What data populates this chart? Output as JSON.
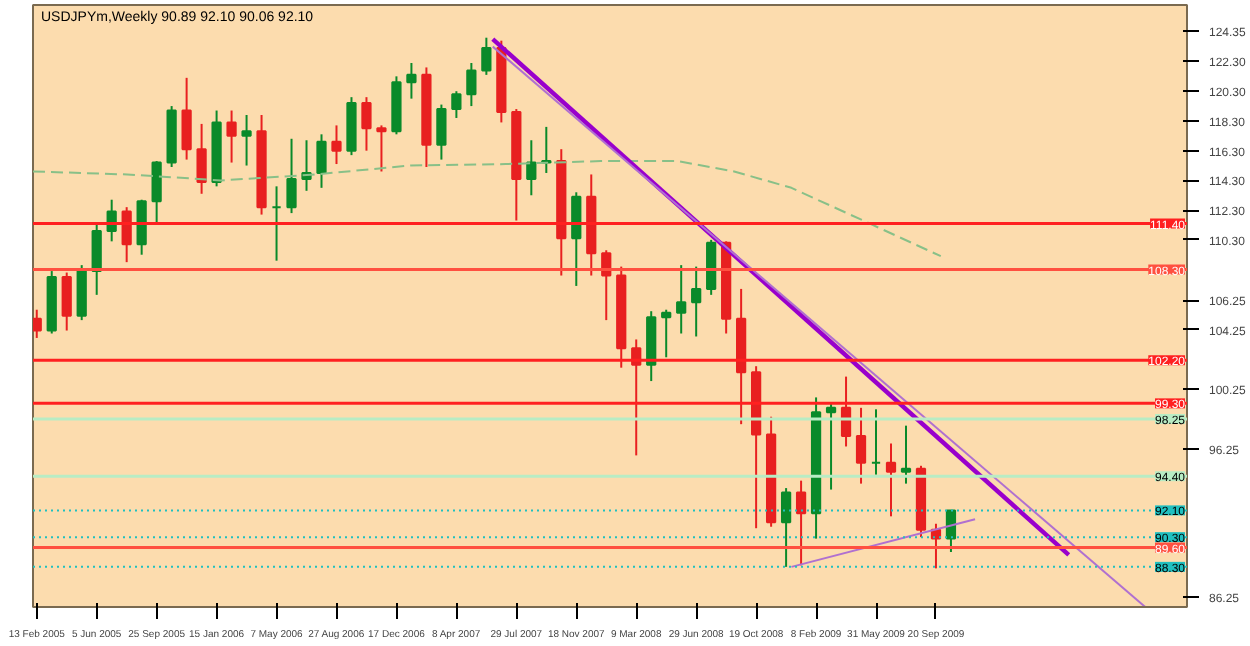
{
  "chart_data": {
    "type": "candlestick",
    "title": "USDJPYm,Weekly  90.89 92.10 90.06 92.10",
    "xlim": [
      "2005-02-06",
      "2011-01-02"
    ],
    "ylim": [
      85.6,
      126.1
    ],
    "xticks": [
      {
        "value": "2005-02-13",
        "label": "13 Feb 2005"
      },
      {
        "value": "2005-06-05",
        "label": "5 Jun 2005"
      },
      {
        "value": "2005-09-25",
        "label": "25 Sep 2005"
      },
      {
        "value": "2006-01-15",
        "label": "15 Jan 2006"
      },
      {
        "value": "2006-05-07",
        "label": "7 May 2006"
      },
      {
        "value": "2006-08-27",
        "label": "27 Aug 2006"
      },
      {
        "value": "2006-12-17",
        "label": "17 Dec 2006"
      },
      {
        "value": "2007-04-08",
        "label": "8 Apr 2007"
      },
      {
        "value": "2007-07-29",
        "label": "29 Jul 2007"
      },
      {
        "value": "2007-11-18",
        "label": "18 Nov 2007"
      },
      {
        "value": "2008-03-09",
        "label": "9 Mar 2008"
      },
      {
        "value": "2008-06-29",
        "label": "29 Jun 2008"
      },
      {
        "value": "2008-10-19",
        "label": "19 Oct 2008"
      },
      {
        "value": "2009-02-08",
        "label": "8 Feb 2009"
      },
      {
        "value": "2009-05-31",
        "label": "31 May 2009"
      },
      {
        "value": "2009-09-20",
        "label": "20 Sep 2009"
      }
    ],
    "yticks": [
      {
        "value": 124.35,
        "label": "124.35"
      },
      {
        "value": 122.3,
        "label": "122.30"
      },
      {
        "value": 120.3,
        "label": "120.30"
      },
      {
        "value": 118.3,
        "label": "118.30"
      },
      {
        "value": 116.3,
        "label": "116.30"
      },
      {
        "value": 114.3,
        "label": "114.30"
      },
      {
        "value": 112.3,
        "label": "112.30"
      },
      {
        "value": 110.3,
        "label": "110.30"
      },
      {
        "value": 106.25,
        "label": "106.25"
      },
      {
        "value": 104.25,
        "label": "104.25"
      },
      {
        "value": 100.25,
        "label": "100.25"
      },
      {
        "value": 96.25,
        "label": "96.25"
      },
      {
        "value": 86.25,
        "label": "86.25"
      }
    ],
    "series": [
      {
        "colors": [
          "#e82020",
          "#0a8a2a",
          "#e82020",
          "#0a8a2a",
          "#0a8a2a",
          "#0a8a2a",
          "#e82020",
          "#0a8a2a",
          "#0a8a2a",
          "#0a8a2a",
          "#e82020",
          "#e82020",
          "#0a8a2a",
          "#e82020",
          "#0a8a2a",
          "#e82020",
          "#0a8a2a",
          "#0a8a2a",
          "#0a8a2a",
          "#0a8a2a",
          "#e82020",
          "#0a8a2a",
          "#e82020",
          "#e82020",
          "#0a8a2a",
          "#0a8a2a",
          "#e82020",
          "#0a8a2a",
          "#0a8a2a",
          "#0a8a2a",
          "#0a8a2a",
          "#e82020",
          "#e82020",
          "#0a8a2a",
          "#0a8a2a",
          "#e82020",
          "#0a8a2a",
          "#e82020",
          "#e82020",
          "#e82020",
          "#e82020",
          "#0a8a2a",
          "#0a8a2a",
          "#0a8a2a",
          "#0a8a2a",
          "#0a8a2a",
          "#e82020",
          "#e82020",
          "#e82020",
          "#e82020",
          "#0a8a2a",
          "#e82020",
          "#0a8a2a",
          "#0a8a2a",
          "#e82020",
          "#e82020",
          "#0a8a2a",
          "#e82020",
          "#0a8a2a",
          "#e82020",
          "#e82020",
          "#0a8a2a"
        ],
        "x": [
          "2005-02-13",
          "2005-03-13",
          "2005-04-10",
          "2005-05-08",
          "2005-06-05",
          "2005-07-03",
          "2005-07-31",
          "2005-08-28",
          "2005-09-25",
          "2005-10-23",
          "2005-11-20",
          "2005-12-18",
          "2006-01-15",
          "2006-02-12",
          "2006-03-12",
          "2006-04-09",
          "2006-05-07",
          "2006-06-04",
          "2006-07-02",
          "2006-07-30",
          "2006-08-27",
          "2006-09-24",
          "2006-10-22",
          "2006-11-19",
          "2006-12-17",
          "2007-01-14",
          "2007-02-11",
          "2007-03-11",
          "2007-04-08",
          "2007-05-06",
          "2007-06-03",
          "2007-07-01",
          "2007-07-29",
          "2007-08-26",
          "2007-09-23",
          "2007-10-21",
          "2007-11-18",
          "2007-12-16",
          "2008-01-13",
          "2008-02-10",
          "2008-03-09",
          "2008-04-06",
          "2008-05-04",
          "2008-06-01",
          "2008-06-29",
          "2008-07-27",
          "2008-08-24",
          "2008-09-21",
          "2008-10-19",
          "2008-11-16",
          "2008-12-14",
          "2009-01-11",
          "2009-02-08",
          "2009-03-08",
          "2009-04-05",
          "2009-05-03",
          "2009-05-31",
          "2009-06-28",
          "2009-07-26",
          "2009-08-23",
          "2009-09-20",
          "2009-10-18"
        ],
        "ohlc": [
          [
            105.0,
            105.6,
            103.7,
            104.2
          ],
          [
            104.2,
            108.2,
            104.0,
            107.8
          ],
          [
            107.8,
            108.1,
            104.2,
            105.2
          ],
          [
            105.2,
            108.6,
            104.9,
            108.2
          ],
          [
            108.2,
            111.3,
            106.6,
            110.9
          ],
          [
            110.9,
            113.0,
            110.2,
            112.2
          ],
          [
            112.2,
            112.5,
            108.8,
            110.0
          ],
          [
            110.0,
            113.0,
            109.3,
            112.9
          ],
          [
            112.9,
            115.6,
            111.5,
            115.5
          ],
          [
            115.5,
            119.3,
            115.2,
            119.0
          ],
          [
            119.0,
            121.2,
            115.7,
            116.4
          ],
          [
            116.4,
            118.1,
            113.4,
            114.2
          ],
          [
            114.2,
            119.0,
            113.9,
            118.2
          ],
          [
            118.2,
            119.0,
            115.5,
            117.3
          ],
          [
            117.3,
            118.7,
            115.3,
            117.6
          ],
          [
            117.6,
            118.7,
            112.0,
            112.5
          ],
          [
            112.5,
            113.9,
            108.9,
            112.5
          ],
          [
            112.5,
            117.1,
            112.1,
            114.4
          ],
          [
            114.4,
            117.0,
            113.6,
            114.8
          ],
          [
            114.8,
            117.4,
            113.8,
            116.9
          ],
          [
            116.9,
            118.0,
            115.4,
            116.3
          ],
          [
            116.3,
            119.9,
            116.0,
            119.5
          ],
          [
            119.5,
            119.9,
            116.3,
            117.8
          ],
          [
            117.8,
            118.0,
            114.9,
            117.6
          ],
          [
            117.6,
            121.3,
            117.4,
            120.9
          ],
          [
            120.9,
            122.2,
            119.8,
            121.4
          ],
          [
            121.4,
            121.9,
            115.2,
            116.7
          ],
          [
            116.7,
            119.4,
            115.7,
            119.1
          ],
          [
            119.1,
            120.3,
            118.5,
            120.1
          ],
          [
            120.1,
            122.2,
            119.3,
            121.7
          ],
          [
            121.7,
            123.9,
            121.4,
            123.2
          ],
          [
            123.2,
            123.7,
            118.2,
            118.9
          ],
          [
            118.9,
            119.1,
            111.6,
            114.4
          ],
          [
            114.4,
            117.0,
            113.3,
            115.5
          ],
          [
            115.5,
            117.9,
            114.8,
            115.6
          ],
          [
            115.6,
            116.4,
            107.9,
            110.4
          ],
          [
            110.4,
            113.5,
            107.2,
            113.2
          ],
          [
            113.2,
            114.7,
            107.9,
            109.4
          ],
          [
            109.4,
            109.6,
            104.9,
            107.9
          ],
          [
            107.9,
            108.5,
            101.7,
            103.0
          ],
          [
            103.0,
            103.6,
            95.8,
            101.9
          ],
          [
            101.9,
            105.5,
            100.8,
            105.1
          ],
          [
            105.1,
            105.6,
            102.4,
            105.4
          ],
          [
            105.4,
            108.6,
            104.0,
            106.1
          ],
          [
            106.1,
            108.5,
            103.8,
            107.0
          ],
          [
            107.0,
            110.3,
            106.6,
            110.1
          ],
          [
            110.1,
            110.2,
            104.0,
            105.0
          ],
          [
            105.0,
            107.0,
            97.9,
            101.4
          ],
          [
            101.4,
            101.8,
            90.9,
            97.2
          ],
          [
            97.2,
            98.4,
            91.0,
            91.3
          ],
          [
            91.3,
            93.6,
            88.3,
            93.3
          ],
          [
            93.3,
            94.1,
            88.4,
            91.9
          ],
          [
            91.9,
            99.7,
            90.2,
            98.7
          ],
          [
            98.7,
            99.3,
            93.5,
            99.0
          ],
          [
            99.0,
            101.1,
            96.4,
            97.1
          ],
          [
            97.1,
            99.0,
            93.9,
            95.3
          ],
          [
            95.3,
            98.9,
            94.5,
            95.3
          ],
          [
            95.3,
            96.6,
            91.7,
            94.7
          ],
          [
            94.7,
            97.8,
            93.9,
            94.9
          ],
          [
            94.9,
            95.1,
            90.3,
            90.8
          ],
          [
            90.8,
            91.2,
            88.2,
            90.2
          ],
          [
            90.2,
            92.1,
            89.3,
            92.1
          ]
        ]
      },
      {
        "type": "line",
        "color": "#88c088",
        "line_style": "dashed",
        "x": [
          "2005-02-06",
          "2005-08-01",
          "2006-01-23",
          "2006-07-19",
          "2007-01-12",
          "2007-07-09",
          "2008-01-03",
          "2008-05-25",
          "2008-09-08",
          "2008-12-24",
          "2009-05-13",
          "2009-09-29"
        ],
        "values": [
          114.9,
          114.7,
          114.3,
          114.7,
          115.3,
          115.4,
          115.6,
          115.6,
          114.9,
          113.8,
          111.5,
          109.2
        ]
      },
      {
        "type": "line",
        "color": "#9900cc",
        "x": [
          "2007-06-15",
          "2010-05-26"
        ],
        "values": [
          123.8,
          89.1
        ]
      },
      {
        "type": "line",
        "color": "#b070d0",
        "x": [
          "2007-06-15",
          "2010-10-16"
        ],
        "values": [
          123.3,
          85.6
        ]
      },
      {
        "type": "line",
        "color": "#b070d0",
        "x": [
          "2008-12-24",
          "2009-12-02"
        ],
        "values": [
          88.3,
          91.5
        ]
      }
    ],
    "ref_lines": [
      {
        "axis": "y",
        "value": 111.4,
        "label": "111.40",
        "color": "#ff2020",
        "line_style": "solid"
      },
      {
        "axis": "y",
        "value": 108.3,
        "label": "108.30",
        "color": "#ff5040",
        "line_style": "solid"
      },
      {
        "axis": "y",
        "value": 102.2,
        "label": "102.20",
        "color": "#ff2020",
        "line_style": "solid"
      },
      {
        "axis": "y",
        "value": 99.3,
        "label": "99.30",
        "color": "#ff2020",
        "line_style": "solid"
      },
      {
        "axis": "y",
        "value": 98.25,
        "label": "98.25",
        "color": "#b8ecc4",
        "line_style": "solid"
      },
      {
        "axis": "y",
        "value": 94.4,
        "label": "94.40",
        "color": "#b8ecc4",
        "line_style": "solid"
      },
      {
        "axis": "y",
        "value": 92.1,
        "label": "92.10",
        "color": "#20c0c0",
        "line_style": "dotted"
      },
      {
        "axis": "y",
        "value": 90.3,
        "label": "90.30",
        "color": "#20c0c0",
        "line_style": "dotted"
      },
      {
        "axis": "y",
        "value": 89.6,
        "label": "89.60",
        "color": "#ff5040",
        "line_style": "solid"
      },
      {
        "axis": "y",
        "value": 88.3,
        "label": "88.30",
        "color": "#20c0c0",
        "line_style": "dotted"
      }
    ],
    "grid": false
  }
}
